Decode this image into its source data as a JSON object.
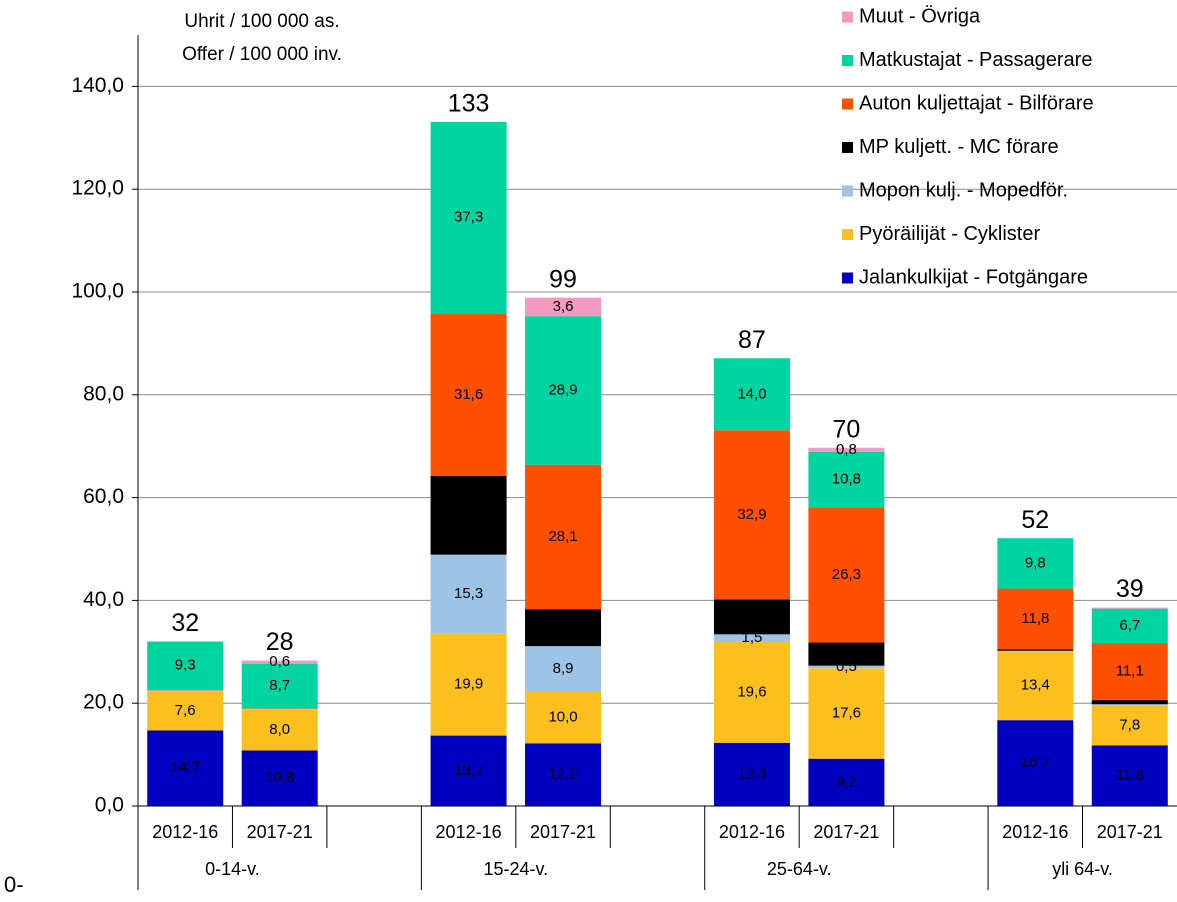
{
  "chart_data": {
    "type": "stacked_bar",
    "annotations": [
      "Uhrit / 100 000 as.",
      "Offer / 100 000 inv.",
      "0-"
    ],
    "categories": [
      "2012-16",
      "2017-21",
      "2012-16",
      "2017-21",
      "2012-16",
      "2017-21",
      "2012-16",
      "2017-21"
    ],
    "groups": [
      "0-14-v.",
      "15-24-v.",
      "25-64-v.",
      "yli 64-v."
    ],
    "totals": [
      32,
      28,
      133,
      99,
      87,
      70,
      52,
      39
    ],
    "ylim": [
      0,
      150
    ],
    "yticks": [
      {
        "value": 0,
        "label": "0,0"
      },
      {
        "value": 20,
        "label": "20,0"
      },
      {
        "value": 40,
        "label": "40,0"
      },
      {
        "value": 60,
        "label": "60,0"
      },
      {
        "value": 80,
        "label": "80,0"
      },
      {
        "value": 100,
        "label": "100,0"
      },
      {
        "value": 120,
        "label": "120,0"
      },
      {
        "value": 140,
        "label": "140,0"
      }
    ],
    "grid": true,
    "legend": "upper right",
    "series": [
      {
        "name": "Jalankulkijat - Fotgängare",
        "color": "#0000c0",
        "values": [
          14.7,
          10.8,
          13.7,
          12.2,
          12.3,
          9.2,
          16.7,
          11.8
        ],
        "value_labels": [
          "14,7",
          "10,8",
          "13,7",
          "12,2",
          "12,3",
          "9,2",
          "16,7",
          "11,8"
        ]
      },
      {
        "name": "Pyöräilijät - Cyklister",
        "color": "#fcc01e",
        "values": [
          7.6,
          8.0,
          19.9,
          10.0,
          19.6,
          17.6,
          13.4,
          7.8
        ],
        "value_labels": [
          "7,6",
          "8,0",
          "19,9",
          "10,0",
          "19,6",
          "17,6",
          "13,4",
          "7,8"
        ]
      },
      {
        "name": "Mopon kulj. - Mopedför.",
        "color": "#9dc3e6",
        "values": [
          0.2,
          0.1,
          15.3,
          8.9,
          1.5,
          0.5,
          0.1,
          0.2
        ],
        "value_labels": [
          null,
          null,
          "15,3",
          "8,9",
          "1,5",
          "0,5",
          null,
          null
        ]
      },
      {
        "name": "MP kuljett. - MC förare",
        "color": "#000000",
        "values": [
          0,
          0,
          15.3,
          7.2,
          6.8,
          4.5,
          0.3,
          0.8
        ],
        "value_labels": [
          null,
          null,
          "15,3",
          "7,2",
          "6,8",
          "4,5",
          null,
          null
        ]
      },
      {
        "name": "Auton kuljettajat - Bilförare",
        "color": "#fe5000",
        "values": [
          0.2,
          0.1,
          31.6,
          28.1,
          32.9,
          26.3,
          11.8,
          11.1
        ],
        "value_labels": [
          null,
          null,
          "31,6",
          "28,1",
          "32,9",
          "26,3",
          "11,8",
          "11,1"
        ]
      },
      {
        "name": "Matkustajat - Passagerare",
        "color": "#00d4a0",
        "values": [
          9.3,
          8.7,
          37.3,
          28.9,
          14.0,
          10.8,
          9.8,
          6.7
        ],
        "value_labels": [
          "9,3",
          "8,7",
          "37,3",
          "28,9",
          "14,0",
          "10,8",
          "9,8",
          "6,7"
        ]
      },
      {
        "name": "Muut - Övriga",
        "color": "#f49ac1",
        "values": [
          0,
          0.6,
          0,
          3.6,
          0,
          0.8,
          0,
          0.2
        ],
        "value_labels": [
          null,
          "0,6",
          null,
          "3,6",
          null,
          "0,8",
          null,
          null
        ]
      }
    ]
  }
}
